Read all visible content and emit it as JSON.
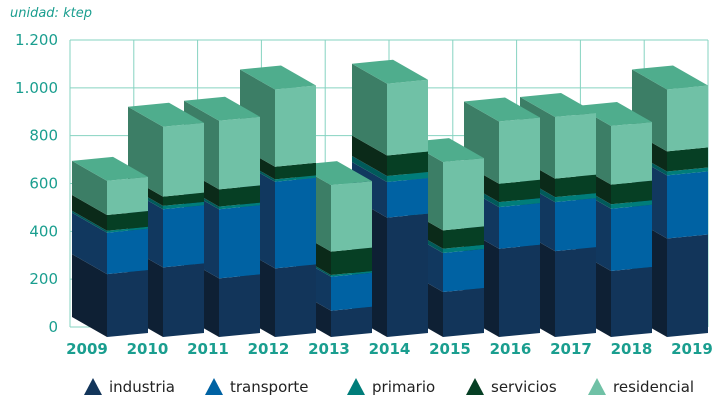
{
  "chart_data": {
    "type": "bar",
    "stacked": true,
    "three_d": true,
    "unit_label": "unidad: ktep",
    "categories": [
      "2009",
      "2010",
      "2011",
      "2012",
      "2013",
      "2014",
      "2015",
      "2016",
      "2017",
      "2018",
      "2019"
    ],
    "ylim": [
      0,
      1200
    ],
    "yticks": [
      0,
      200,
      400,
      600,
      800,
      1000,
      1200
    ],
    "ytick_labels": [
      "0",
      "200",
      "400",
      "600",
      "800",
      "1.000",
      "1.200"
    ],
    "grid": true,
    "legend_position": "bottom",
    "series": [
      {
        "name": "industria",
        "color": "#12355a",
        "side": "#0e2034",
        "values": [
          263,
          291,
          245,
          287,
          110,
          499,
          188,
          369,
          359,
          276,
          412
        ]
      },
      {
        "name": "transporte",
        "color": "#0062a3",
        "side": "#11385f",
        "values": [
          173,
          243,
          289,
          362,
          142,
          149,
          163,
          174,
          205,
          260,
          264
        ]
      },
      {
        "name": "primario",
        "color": "#007d7a",
        "side": "#005a5a",
        "values": [
          8,
          14,
          11,
          10,
          7,
          25,
          18,
          21,
          21,
          19,
          16
        ]
      },
      {
        "name": "servicios",
        "color": "#063f24",
        "side": "#0b2a19",
        "values": [
          66,
          39,
          72,
          53,
          98,
          86,
          77,
          77,
          77,
          82,
          84
        ]
      },
      {
        "name": "residencial",
        "color": "#70c1a6",
        "side": "#3c7e66",
        "top": "#4fad8d",
        "values": [
          143,
          292,
          287,
          323,
          278,
          300,
          285,
          260,
          258,
          245,
          259
        ]
      }
    ]
  }
}
